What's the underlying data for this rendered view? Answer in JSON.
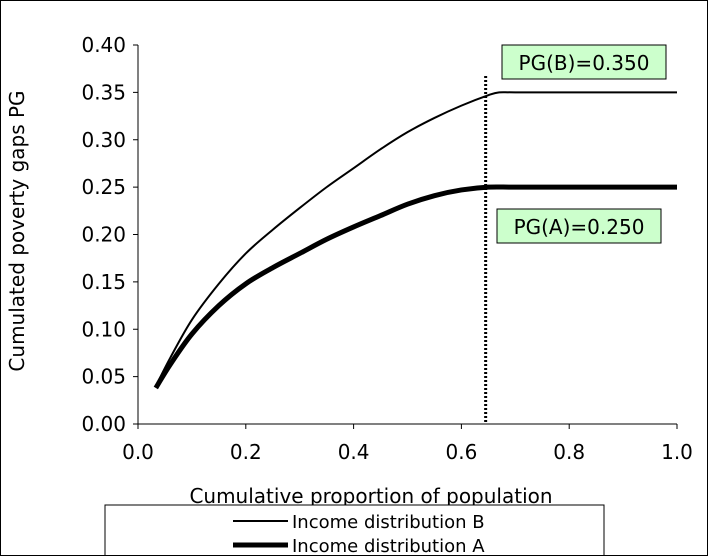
{
  "chart_data": {
    "type": "line",
    "xlabel": "Cumulative proportion of population",
    "ylabel": "Cumulated poverty gaps PG",
    "xlim": [
      0.0,
      1.0
    ],
    "ylim": [
      0.0,
      0.4
    ],
    "xticks": [
      "0.0",
      "0.2",
      "0.4",
      "0.6",
      "0.8",
      "1.0"
    ],
    "yticks": [
      "0.00",
      "0.05",
      "0.10",
      "0.15",
      "0.20",
      "0.25",
      "0.30",
      "0.35",
      "0.40"
    ],
    "grid": false,
    "legend_position": "bottom",
    "series": [
      {
        "name": "Income distribution B",
        "color": "#000000",
        "x": [
          0.033,
          0.06,
          0.1,
          0.15,
          0.2,
          0.25,
          0.3,
          0.35,
          0.4,
          0.45,
          0.5,
          0.55,
          0.6,
          0.65,
          0.67,
          0.7,
          0.8,
          0.9,
          1.0
        ],
        "y": [
          0.04,
          0.07,
          0.11,
          0.148,
          0.18,
          0.205,
          0.228,
          0.25,
          0.27,
          0.29,
          0.308,
          0.323,
          0.336,
          0.347,
          0.35,
          0.35,
          0.35,
          0.35,
          0.35
        ]
      },
      {
        "name": "Income distribution A",
        "color": "#000000",
        "x": [
          0.033,
          0.06,
          0.1,
          0.15,
          0.2,
          0.25,
          0.3,
          0.35,
          0.4,
          0.45,
          0.5,
          0.55,
          0.6,
          0.65,
          0.7,
          0.8,
          0.9,
          1.0
        ],
        "y": [
          0.038,
          0.063,
          0.095,
          0.125,
          0.148,
          0.165,
          0.18,
          0.195,
          0.208,
          0.22,
          0.232,
          0.241,
          0.247,
          0.25,
          0.25,
          0.25,
          0.25,
          0.25
        ]
      }
    ],
    "vertical_line_x": 0.645,
    "annotations": [
      {
        "text": "PG(B)=0.350",
        "color": "#ccffcc"
      },
      {
        "text": "PG(A)=0.250",
        "color": "#ccffcc"
      }
    ]
  }
}
